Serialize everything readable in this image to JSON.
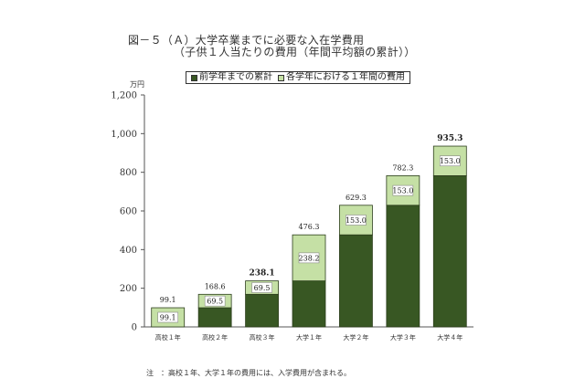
{
  "title": {
    "line1": "図－５（Ａ）大学卒業までに必要な入在学費用",
    "line2": "（子供１人当たりの費用（年間平均額の累計））"
  },
  "legend": {
    "items": [
      {
        "label": "前学年までの累計",
        "color": "#385723"
      },
      {
        "label": "各学年における１年間の費用",
        "color": "#c5e0a5"
      }
    ]
  },
  "note": "注　：高校１年、大学１年の費用には、入学費用が含まれる。",
  "chart_data": {
    "type": "bar",
    "stacked": true,
    "unit_label": "万円",
    "categories": [
      "高校１年",
      "高校２年",
      "高校３年",
      "大学１年",
      "大学２年",
      "大学３年",
      "大学４年"
    ],
    "series": [
      {
        "name": "前学年までの累計",
        "values": [
          0,
          99.1,
          168.6,
          238.1,
          476.3,
          629.3,
          782.3
        ],
        "color": "#385723"
      },
      {
        "name": "各学年における１年間の費用",
        "values": [
          99.1,
          69.5,
          69.5,
          238.2,
          153.0,
          153.0,
          153.0
        ],
        "color": "#c5e0a5"
      }
    ],
    "segment_labels": [
      "99.1",
      "69.5",
      "69.5",
      "238.2",
      "153.0",
      "153.0",
      "153.0"
    ],
    "total_labels": [
      "99.1",
      "168.6",
      "238.1",
      "476.3",
      "629.3",
      "782.3",
      "935.3"
    ],
    "bold_totals": [
      false,
      false,
      true,
      false,
      false,
      false,
      true
    ],
    "y_ticks": [
      "0",
      "200",
      "400",
      "600",
      "800",
      "1,000",
      "1,200"
    ],
    "y_tick_values": [
      0,
      200,
      400,
      600,
      800,
      1000,
      1200
    ],
    "ylim": [
      0,
      1200
    ],
    "grid": false,
    "legend_position": "top"
  }
}
